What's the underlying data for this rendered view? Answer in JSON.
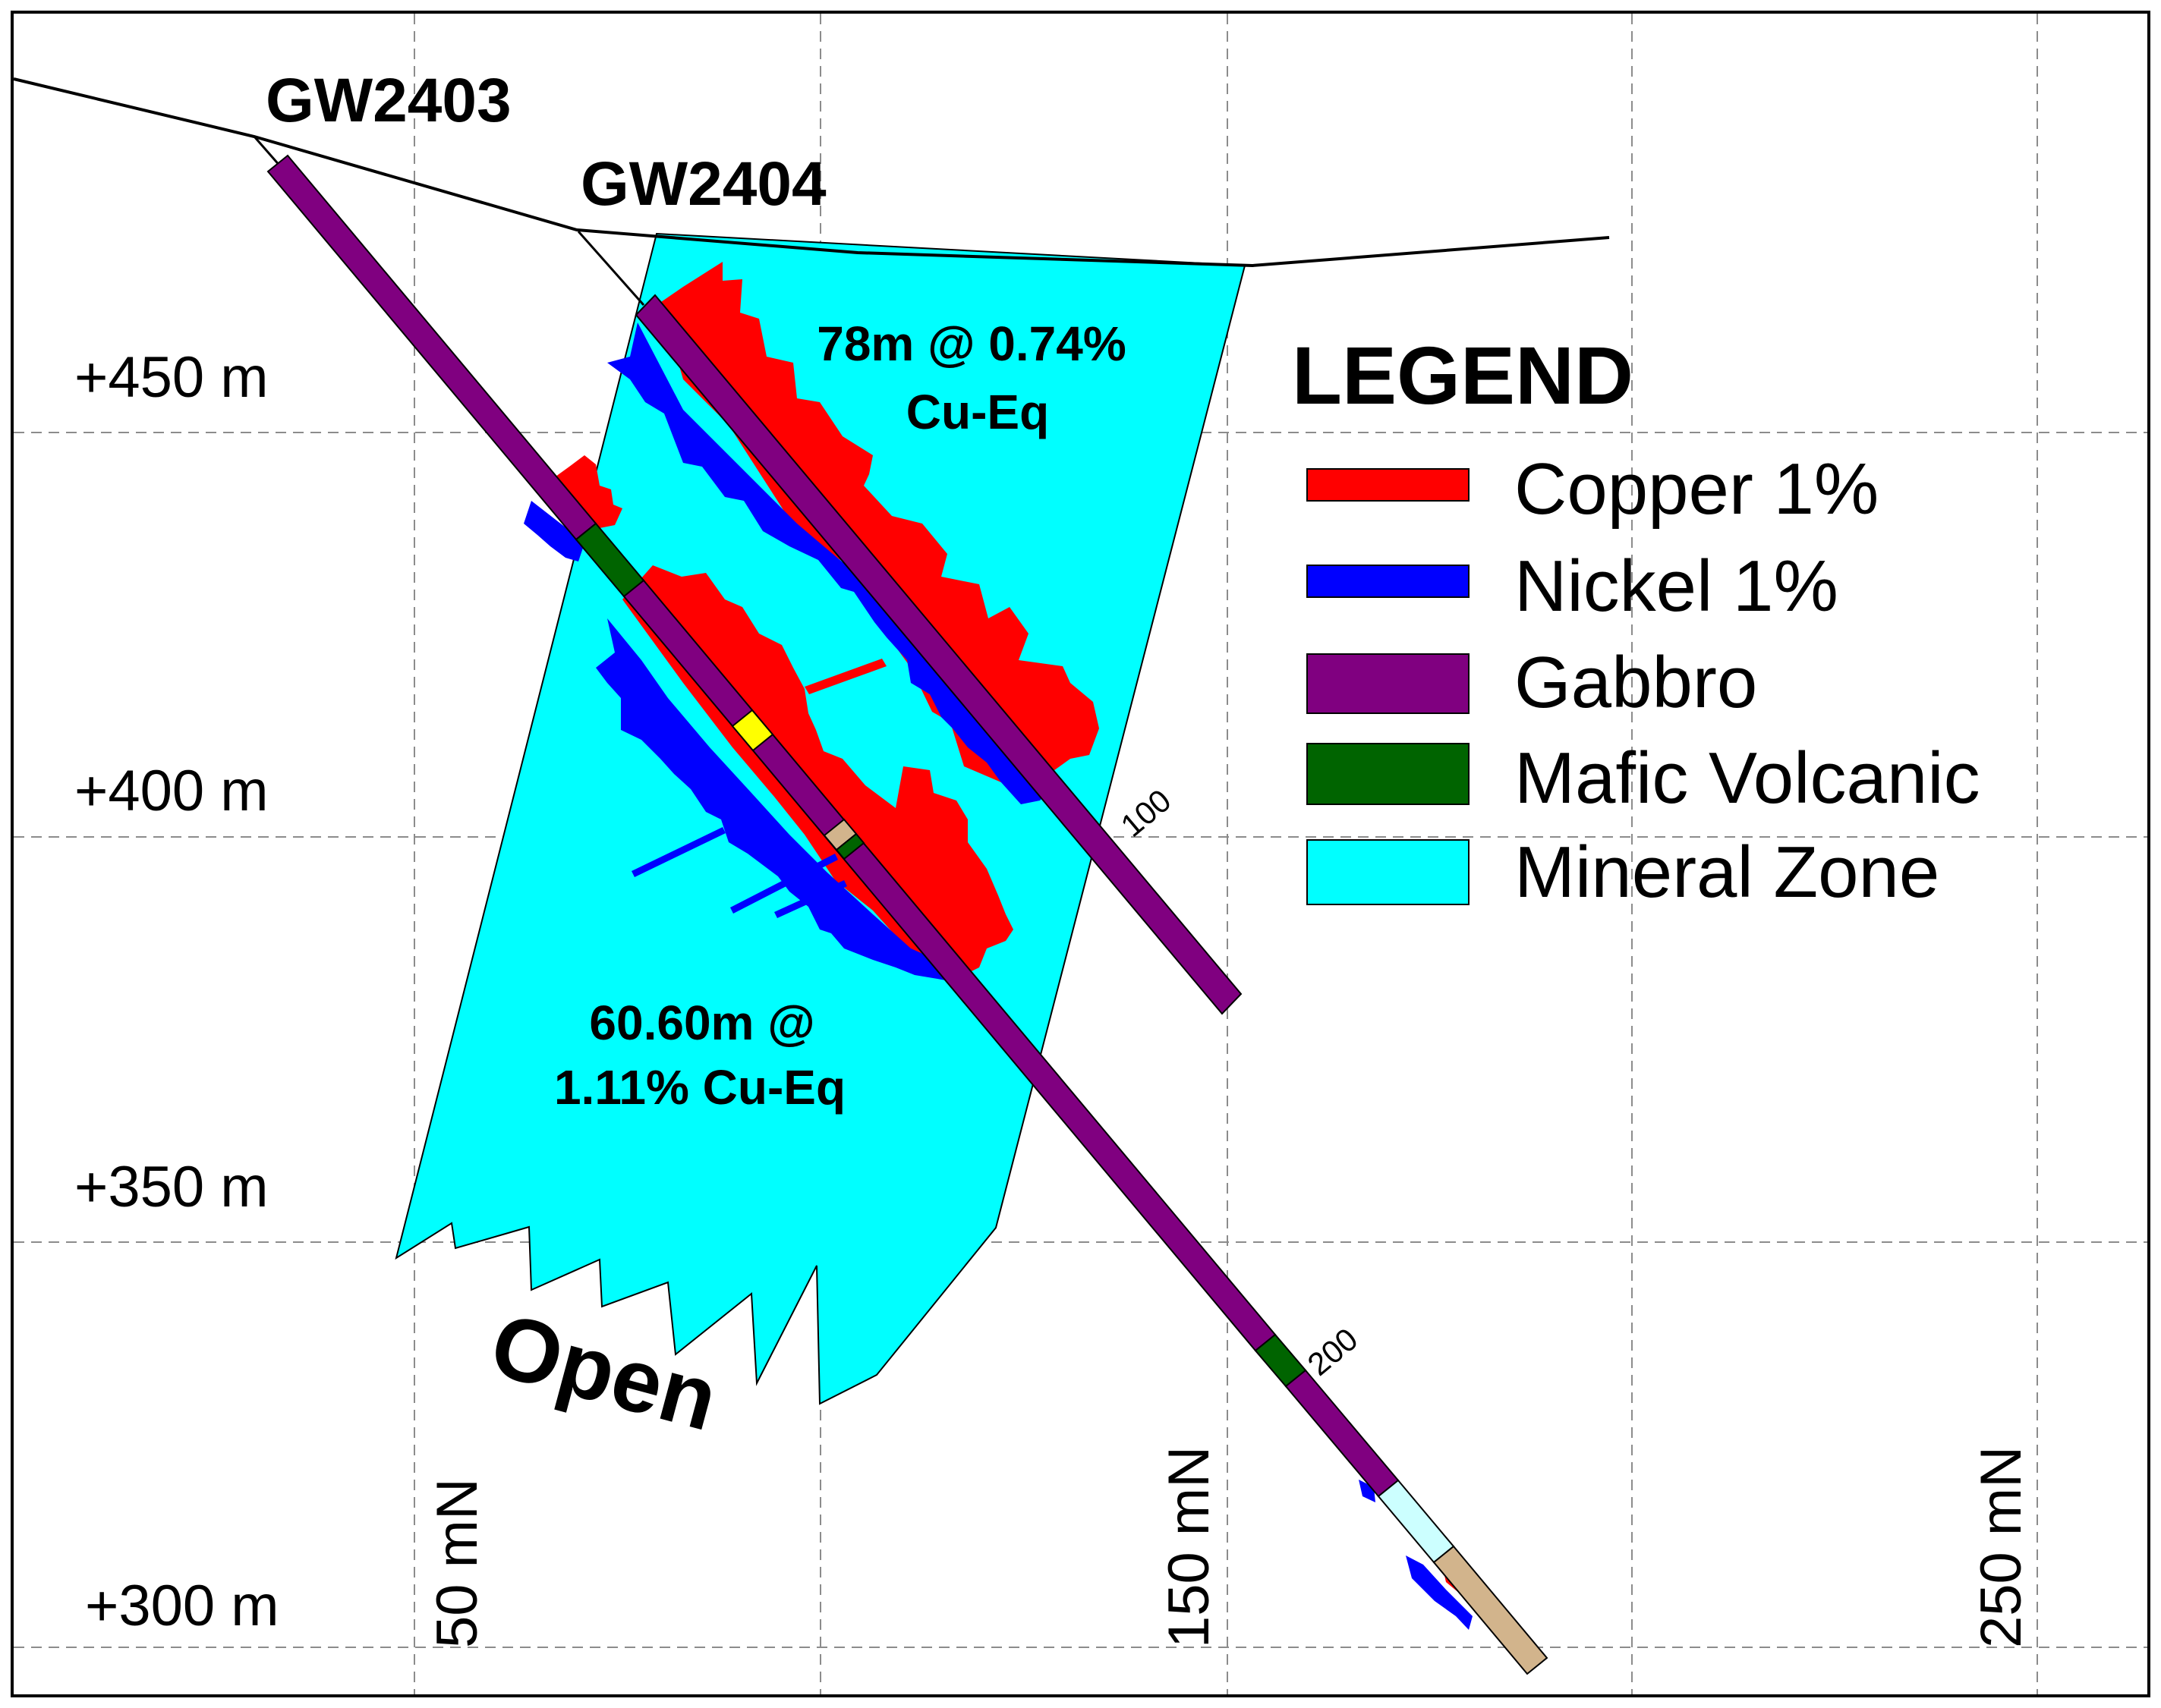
{
  "elevation_labels": [
    "+450 m",
    "+400 m",
    "+350 m",
    "+300 m"
  ],
  "northing_labels": [
    "50 mN",
    "150 mN",
    "250 mN"
  ],
  "drill_holes": [
    {
      "id": "GW2403",
      "depth_markers": [
        "200"
      ]
    },
    {
      "id": "GW2404",
      "depth_markers": [
        "100"
      ]
    }
  ],
  "intercepts": [
    {
      "line1": "78m @ 0.74%",
      "line2": "Cu-Eq"
    },
    {
      "line1": "60.60m @",
      "line2": "1.11% Cu-Eq"
    }
  ],
  "open_label": "Open",
  "legend": {
    "title": "LEGEND",
    "items": [
      {
        "label": "Copper 1%",
        "color": "#ff0000"
      },
      {
        "label": "Nickel 1%",
        "color": "#0000ff"
      },
      {
        "label": "Gabbro",
        "color": "#800080"
      },
      {
        "label": "Mafic Volcanic",
        "color": "#006400"
      },
      {
        "label": "Mineral Zone",
        "color": "#00ffff"
      }
    ]
  },
  "colors": {
    "copper": "#ff0000",
    "nickel": "#0000ff",
    "gabbro": "#800080",
    "mafic_volcanic": "#006400",
    "mineral_zone": "#00ffff",
    "yellow_unit": "#ffff00",
    "tan_unit": "#d2b48c",
    "pale_unit": "#ccffff"
  }
}
